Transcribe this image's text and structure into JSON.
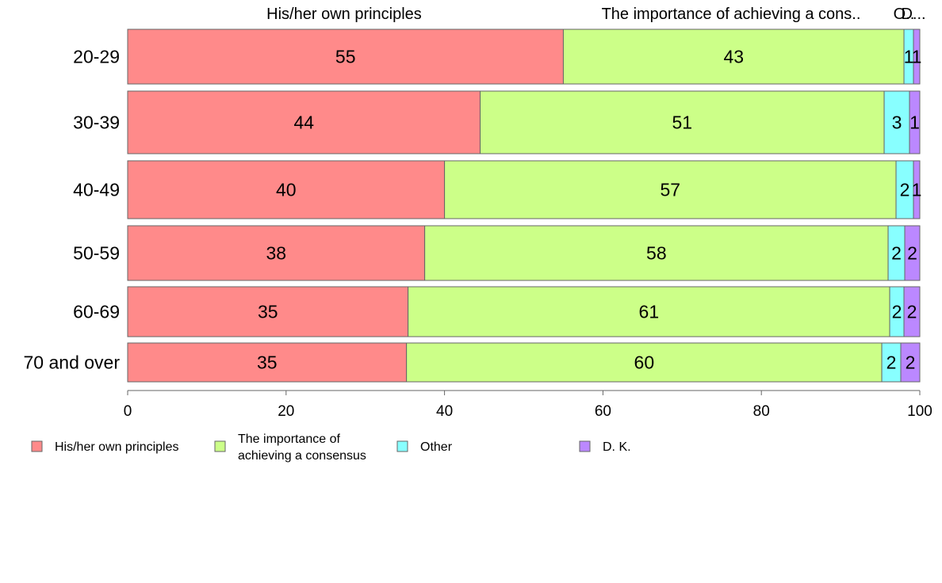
{
  "chart_data": {
    "type": "bar",
    "orientation": "horizontal",
    "stacked": true,
    "title": "",
    "xlabel": "",
    "ylabel": "",
    "xlim": [
      0,
      100
    ],
    "x_ticks": [
      "0",
      "20",
      "40",
      "60",
      "80",
      "100"
    ],
    "categories": [
      "20-29",
      "30-39",
      "40-49",
      "50-59",
      "60-69",
      "70 and over"
    ],
    "series": [
      {
        "name": "His/her own principles",
        "color": "#FF8A8A",
        "values": [
          55,
          44.5,
          40,
          37.5,
          35.4,
          35.2
        ]
      },
      {
        "name": "The importance of achieving a consensus",
        "color": "#CCFF88",
        "values": [
          43,
          51,
          57,
          58.5,
          60.8,
          60
        ],
        "legend_lines": [
          "The importance of",
          "achieving a consensus"
        ]
      },
      {
        "name": "Other",
        "color": "#88FFFF",
        "values": [
          1.2,
          3.2,
          2.2,
          2.1,
          1.8,
          2.4
        ]
      },
      {
        "name": "D. K.",
        "color": "#BB88FF",
        "values": [
          0.8,
          1.3,
          0.8,
          1.9,
          2,
          2.4
        ]
      }
    ],
    "data_labels": [
      [
        "55",
        "43",
        "1",
        "1"
      ],
      [
        "44",
        "51",
        "3",
        "1"
      ],
      [
        "40",
        "57",
        "2",
        "1"
      ],
      [
        "38",
        "58",
        "2",
        "2"
      ],
      [
        "35",
        "61",
        "2",
        "2"
      ],
      [
        "35",
        "60",
        "2",
        "2"
      ]
    ],
    "top_labels": [
      "His/her own principles",
      "The importance of achieving a cons..",
      "O..",
      "D..."
    ],
    "legend_position": "bottom-left"
  }
}
